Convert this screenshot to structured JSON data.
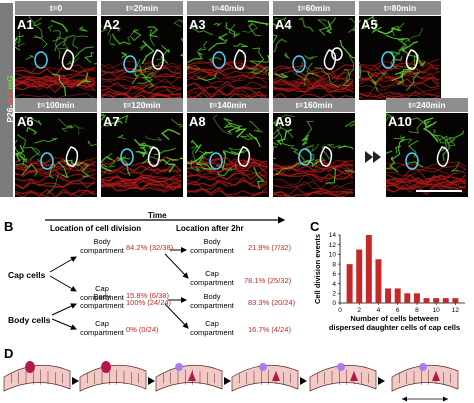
{
  "figure": {
    "panel_a": {
      "stain_label": "P26-mT mG",
      "stain_parts": [
        "P26-",
        "m",
        "T",
        " m",
        "G"
      ],
      "frames": [
        {
          "id": "A1",
          "time": "t=0"
        },
        {
          "id": "A2",
          "time": "t=20min"
        },
        {
          "id": "A3",
          "time": "t=40min"
        },
        {
          "id": "A4",
          "time": "t=60min"
        },
        {
          "id": "A5",
          "time": "t=80min"
        },
        {
          "id": "A6",
          "time": "t=100min"
        },
        {
          "id": "A7",
          "time": "t=120min"
        },
        {
          "id": "A8",
          "time": "t=140min"
        },
        {
          "id": "A9",
          "time": "t=160min"
        },
        {
          "id": "A10",
          "time": "t=240min"
        }
      ],
      "colors": {
        "membrane_green": "#55d02a",
        "membrane_red": "#b01818",
        "outline_cyan": "#4fd2ff",
        "outline_white": "#ffffff"
      }
    },
    "panel_b": {
      "letter": "B",
      "time_label": "Time",
      "col_left": "Location of cell division",
      "col_right": "Location after 2hr",
      "cap_cells_label": "Cap cells",
      "body_cells_label": "Body cells",
      "cap": {
        "mid_top": "Body compartment",
        "mid_bottom": "Cap compartment",
        "val_top": "84.2% (32/38)",
        "val_bottom": "15.8% (6/38)",
        "right_top": "Body compartment",
        "right_bottom": "Cap compartment",
        "val_right_top": "21.9% (7/32)",
        "val_right_bottom": "78.1% (25/32)"
      },
      "body": {
        "mid_top": "Body compartment",
        "mid_bottom": "Cap compartment",
        "val_top": "100% (24/24)",
        "val_bottom": "0% (0/24)",
        "right_top": "Body compartment",
        "right_bottom": "Cap compartment",
        "val_right_top": "83.3% (20/24)",
        "val_right_bottom": "16.7% (4/24)"
      }
    },
    "panel_c": {
      "letter": "C",
      "chart_data": {
        "type": "bar",
        "ylabel": "Cell division events",
        "xlabel": "Number of cells between dispersed daughter cells of cap cells",
        "xlabel_lines": [
          "Number of cells between",
          "dispersed daughter cells of cap cells"
        ],
        "x": [
          1,
          2,
          3,
          4,
          5,
          6,
          7,
          8,
          9,
          10,
          11,
          12
        ],
        "values": [
          8,
          11,
          14,
          9,
          3,
          3,
          2,
          2,
          1,
          1,
          1,
          1
        ],
        "xticks": [
          0,
          2,
          4,
          6,
          8,
          10,
          12
        ],
        "yticks": [
          0,
          2,
          4,
          6,
          8,
          10,
          12,
          14
        ],
        "xlim": [
          0,
          13
        ],
        "ylim": [
          0,
          14
        ],
        "bar_color": "#c62828",
        "grid": false
      }
    },
    "panel_d": {
      "letter": "D",
      "colors": {
        "tissue": "#f2c9c4",
        "stroke": "#5a2a2a",
        "dividing": "#b4184a",
        "daughter": "#a97cf0"
      }
    }
  }
}
